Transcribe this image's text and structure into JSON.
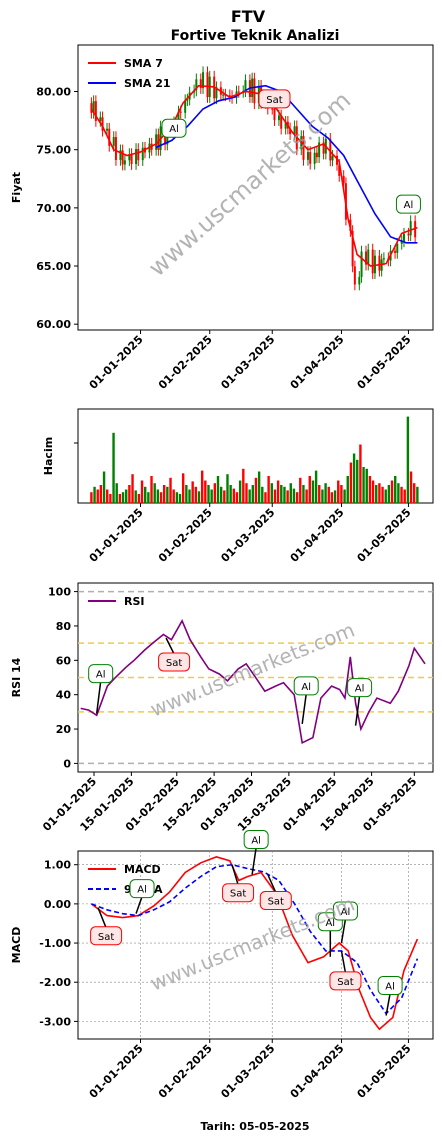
{
  "header": {
    "ticker": "FTV",
    "subtitle": "Fortive Teknik Analizi",
    "footer": "Tarih: 05-05-2025"
  },
  "watermark": "www.uscmarkets.com",
  "colors": {
    "price_up": "#008000",
    "price_down": "#ff0000",
    "sma7": "#ff0000",
    "sma21": "#0000ff",
    "rsi": "#800080",
    "macd": "#ff0000",
    "signal": "#0000ff",
    "buy_box": "#008000",
    "sell_box": "#ff0000"
  },
  "chart_data": [
    {
      "id": "price",
      "type": "line",
      "ylabel": "Fiyat",
      "ylim": [
        59.5,
        84.0
      ],
      "yticks": [
        "60.00",
        "65.00",
        "70.00",
        "75.00",
        "80.00"
      ],
      "xticks": [
        "01-01-2025",
        "01-02-2025",
        "01-03-2025",
        "01-04-2025",
        "01-05-2025"
      ],
      "xlim": [
        "2024-12-04",
        "2025-05-12"
      ],
      "legend": "top-left",
      "series": [
        {
          "name": "SMA 7",
          "x": [
            "2024-12-10",
            "2024-12-15",
            "2024-12-20",
            "2024-12-26",
            "2025-01-01",
            "2025-01-08",
            "2025-01-15",
            "2025-01-20",
            "2025-01-27",
            "2025-02-03",
            "2025-02-10",
            "2025-02-17",
            "2025-02-24",
            "2025-03-03",
            "2025-03-10",
            "2025-03-17",
            "2025-03-24",
            "2025-03-31",
            "2025-04-04",
            "2025-04-08",
            "2025-04-14",
            "2025-04-21",
            "2025-04-28",
            "2025-05-05"
          ],
          "y": [
            78.5,
            77.0,
            75.0,
            74.5,
            74.8,
            75.5,
            77.0,
            79.0,
            80.5,
            80.4,
            79.5,
            80.0,
            79.8,
            78.5,
            76.5,
            75.0,
            75.5,
            74.0,
            69.0,
            66.0,
            65.0,
            65.2,
            67.8,
            68.3
          ]
        },
        {
          "name": "SMA 21",
          "x": [
            "2025-01-08",
            "2025-01-15",
            "2025-01-22",
            "2025-01-29",
            "2025-02-05",
            "2025-02-12",
            "2025-02-19",
            "2025-02-26",
            "2025-03-05",
            "2025-03-12",
            "2025-03-19",
            "2025-03-26",
            "2025-04-02",
            "2025-04-09",
            "2025-04-16",
            "2025-04-23",
            "2025-04-30",
            "2025-05-05"
          ],
          "y": [
            75.2,
            75.8,
            77.0,
            78.5,
            79.2,
            79.5,
            80.3,
            80.5,
            80.0,
            78.5,
            77.0,
            76.0,
            74.5,
            72.0,
            69.5,
            67.5,
            67.0,
            67.0
          ]
        },
        {
          "name": "Close",
          "x": [
            "2024-12-10",
            "2024-12-17",
            "2024-12-24",
            "2024-12-31",
            "2025-01-07",
            "2025-01-14",
            "2025-01-21",
            "2025-01-28",
            "2025-02-04",
            "2025-02-11",
            "2025-02-18",
            "2025-02-25",
            "2025-03-04",
            "2025-03-11",
            "2025-03-18",
            "2025-03-25",
            "2025-04-01",
            "2025-04-04",
            "2025-04-08",
            "2025-04-11",
            "2025-04-17",
            "2025-04-24",
            "2025-05-01",
            "2025-05-05"
          ],
          "y": [
            79.0,
            76.5,
            74.0,
            74.5,
            75.5,
            76.5,
            79.0,
            81.0,
            80.0,
            79.5,
            80.5,
            79.5,
            77.5,
            76.5,
            74.0,
            75.5,
            73.0,
            69.0,
            63.0,
            66.0,
            65.0,
            66.0,
            68.0,
            68.5
          ]
        }
      ],
      "annotations": [
        {
          "label": "Al",
          "kind": "buy",
          "x": "2025-01-16",
          "y": 76.5
        },
        {
          "label": "Sat",
          "kind": "sell",
          "x": "2025-03-02",
          "y": 79.2
        },
        {
          "label": "Al",
          "kind": "buy",
          "x": "2025-05-01",
          "y": 69.8
        }
      ]
    },
    {
      "id": "volume",
      "type": "bar",
      "ylabel": "Hacim",
      "xticks": [
        "01-01-2025",
        "01-02-2025",
        "01-03-2025",
        "01-04-2025",
        "01-05-2025"
      ],
      "xlim": [
        "2024-12-04",
        "2025-05-12"
      ],
      "note": "relative daily volume, max = 1.0",
      "values": [
        0.12,
        0.18,
        0.15,
        0.2,
        0.35,
        0.15,
        0.1,
        0.78,
        0.22,
        0.1,
        0.12,
        0.15,
        0.2,
        0.32,
        0.14,
        0.1,
        0.25,
        0.18,
        0.12,
        0.3,
        0.22,
        0.15,
        0.12,
        0.2,
        0.18,
        0.28,
        0.15,
        0.12,
        0.1,
        0.33,
        0.2,
        0.15,
        0.24,
        0.18,
        0.13,
        0.36,
        0.25,
        0.2,
        0.15,
        0.22,
        0.3,
        0.18,
        0.14,
        0.32,
        0.2,
        0.16,
        0.12,
        0.25,
        0.38,
        0.22,
        0.15,
        0.2,
        0.28,
        0.35,
        0.18,
        0.12,
        0.3,
        0.22,
        0.15,
        0.25,
        0.2,
        0.18,
        0.14,
        0.22,
        0.16,
        0.12,
        0.28,
        0.2,
        0.15,
        0.3,
        0.25,
        0.36,
        0.2,
        0.15,
        0.22,
        0.18,
        0.12,
        0.14,
        0.25,
        0.2,
        0.15,
        0.3,
        0.45,
        0.55,
        0.48,
        0.65,
        0.4,
        0.38,
        0.3,
        0.25,
        0.2,
        0.22,
        0.18,
        0.15,
        0.2,
        0.25,
        0.3,
        0.22,
        0.18,
        0.15,
        0.96,
        0.35,
        0.22,
        0.18
      ]
    },
    {
      "id": "rsi",
      "type": "line",
      "ylabel": "RSI 14",
      "ylim": [
        -5,
        105
      ],
      "yticks": [
        "0",
        "20",
        "40",
        "60",
        "80",
        "100"
      ],
      "xticks": [
        "01-01-2025",
        "15-01-2025",
        "01-02-2025",
        "15-02-2025",
        "01-03-2025",
        "15-03-2025",
        "01-04-2025",
        "15-04-2025",
        "01-05-2025"
      ],
      "xlim": [
        "2024-12-26",
        "2025-05-08"
      ],
      "reference_lines": [
        0,
        30,
        50,
        70,
        100
      ],
      "legend": "top-left",
      "series": [
        {
          "name": "RSI",
          "x": [
            "2024-12-27",
            "2024-12-30",
            "2025-01-02",
            "2025-01-06",
            "2025-01-09",
            "2025-01-13",
            "2025-01-16",
            "2025-01-20",
            "2025-01-23",
            "2025-01-27",
            "2025-01-30",
            "2025-02-03",
            "2025-02-06",
            "2025-02-10",
            "2025-02-13",
            "2025-02-17",
            "2025-02-20",
            "2025-02-24",
            "2025-02-27",
            "2025-03-03",
            "2025-03-06",
            "2025-03-10",
            "2025-03-13",
            "2025-03-17",
            "2025-03-20",
            "2025-03-24",
            "2025-03-27",
            "2025-03-31",
            "2025-04-03",
            "2025-04-05",
            "2025-04-07",
            "2025-04-09",
            "2025-04-11",
            "2025-04-14",
            "2025-04-17",
            "2025-04-22",
            "2025-04-25",
            "2025-04-29",
            "2025-05-01",
            "2025-05-05"
          ],
          "y": [
            32,
            31,
            28,
            45,
            50,
            56,
            60,
            66,
            70,
            75,
            72,
            83,
            72,
            62,
            55,
            52,
            48,
            55,
            58,
            49,
            42,
            45,
            47,
            40,
            12,
            15,
            38,
            45,
            43,
            38,
            62,
            35,
            20,
            30,
            38,
            35,
            42,
            57,
            67,
            58
          ]
        }
      ],
      "annotations": [
        {
          "label": "Al",
          "kind": "buy",
          "x": "2025-01-02",
          "y": 29
        },
        {
          "label": "Sat",
          "kind": "sell",
          "x": "2025-01-28",
          "y": 73
        },
        {
          "label": "Al",
          "kind": "buy",
          "x": "2025-03-20",
          "y": 23
        },
        {
          "label": "Al",
          "kind": "buy",
          "x": "2025-04-09",
          "y": 22
        }
      ]
    },
    {
      "id": "macd",
      "type": "line",
      "ylabel": "MACD",
      "ylim": [
        -3.45,
        1.35
      ],
      "yticks": [
        "-3.00",
        "-2.00",
        "-1.00",
        "0.00",
        "1.00"
      ],
      "xticks": [
        "01-01-2025",
        "01-02-2025",
        "01-03-2025",
        "01-04-2025",
        "01-05-2025"
      ],
      "xlim": [
        "2024-12-04",
        "2025-05-12"
      ],
      "grid": true,
      "legend": "top-left",
      "series": [
        {
          "name": "MACD",
          "x": [
            "2024-12-10",
            "2024-12-17",
            "2024-12-24",
            "2024-12-31",
            "2025-01-07",
            "2025-01-14",
            "2025-01-21",
            "2025-01-28",
            "2025-02-04",
            "2025-02-10",
            "2025-02-14",
            "2025-02-18",
            "2025-02-24",
            "2025-03-03",
            "2025-03-10",
            "2025-03-17",
            "2025-03-24",
            "2025-03-31",
            "2025-04-04",
            "2025-04-09",
            "2025-04-14",
            "2025-04-18",
            "2025-04-24",
            "2025-04-29",
            "2025-05-05"
          ],
          "y": [
            0.0,
            -0.3,
            -0.35,
            -0.3,
            -0.05,
            0.3,
            0.8,
            1.05,
            1.2,
            1.1,
            0.6,
            0.7,
            0.8,
            0.25,
            -0.8,
            -1.5,
            -1.35,
            -1.0,
            -1.2,
            -2.2,
            -2.9,
            -3.2,
            -2.9,
            -1.7,
            -0.9
          ]
        },
        {
          "name": "9 EMA",
          "x": [
            "2024-12-10",
            "2024-12-17",
            "2024-12-24",
            "2024-12-31",
            "2025-01-07",
            "2025-01-14",
            "2025-01-21",
            "2025-01-28",
            "2025-02-04",
            "2025-02-11",
            "2025-02-18",
            "2025-02-25",
            "2025-03-04",
            "2025-03-11",
            "2025-03-18",
            "2025-03-25",
            "2025-04-01",
            "2025-04-08",
            "2025-04-14",
            "2025-04-21",
            "2025-04-28",
            "2025-05-05"
          ],
          "y": [
            0.0,
            -0.15,
            -0.25,
            -0.3,
            -0.15,
            0.05,
            0.4,
            0.7,
            0.95,
            1.0,
            0.9,
            0.82,
            0.6,
            0.0,
            -0.7,
            -1.2,
            -1.2,
            -1.5,
            -2.2,
            -2.8,
            -2.4,
            -1.4
          ]
        }
      ],
      "annotations": [
        {
          "label": "Sat",
          "kind": "sell",
          "x": "2024-12-13",
          "y": -0.1
        },
        {
          "label": "Al",
          "kind": "buy",
          "x": "2024-12-30",
          "y": -0.25
        },
        {
          "label": "Sat",
          "kind": "sell",
          "x": "2025-02-11",
          "y": 1.0
        },
        {
          "label": "Al",
          "kind": "buy",
          "x": "2025-02-20",
          "y": 0.75
        },
        {
          "label": "Sat",
          "kind": "sell",
          "x": "2025-02-27",
          "y": 0.75
        },
        {
          "label": "Al",
          "kind": "buy",
          "x": "2025-03-27",
          "y": -1.35
        },
        {
          "label": "Al",
          "kind": "buy",
          "x": "2025-04-01",
          "y": -1.0
        },
        {
          "label": "Sat",
          "kind": "sell",
          "x": "2025-04-01",
          "y": -1.2
        },
        {
          "label": "Al",
          "kind": "buy",
          "x": "2025-04-21",
          "y": -2.85
        }
      ]
    }
  ]
}
